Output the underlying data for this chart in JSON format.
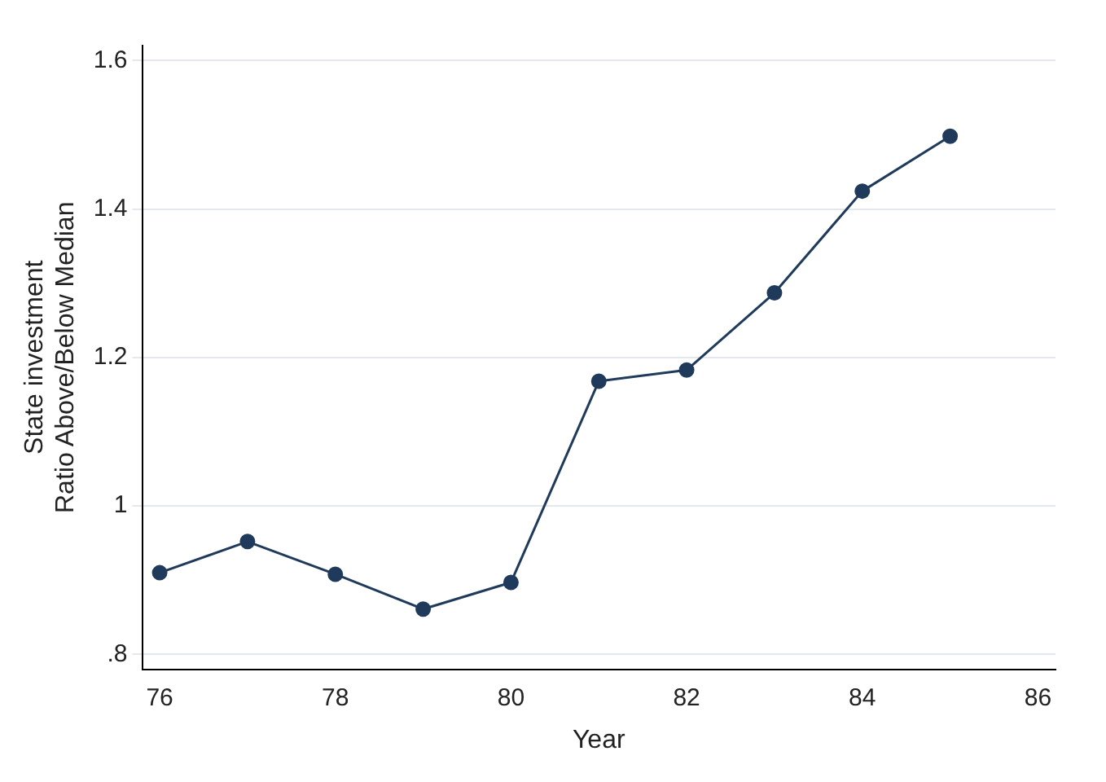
{
  "chart_data": {
    "type": "line",
    "xlabel": "Year",
    "ylabel": "State investment\nRatio Above/Below Median",
    "x": [
      76,
      77,
      78,
      79,
      80,
      81,
      82,
      83,
      84,
      85
    ],
    "series": [
      {
        "color": "#1f3a5a",
        "values": [
          0.91,
          0.952,
          0.908,
          0.861,
          0.897,
          1.168,
          1.183,
          1.287,
          1.424,
          1.498
        ]
      }
    ],
    "xlim": [
      75.8,
      86.2
    ],
    "xticks": [
      76,
      78,
      80,
      82,
      84,
      86
    ],
    "ylim": [
      0.78,
      1.62
    ],
    "yticks": [
      {
        "value": 0.8,
        "label": ".8"
      },
      1,
      1.2,
      1.4,
      1.6
    ],
    "grid": "y",
    "legend": false,
    "marker": "circle",
    "line_style": "solid"
  }
}
